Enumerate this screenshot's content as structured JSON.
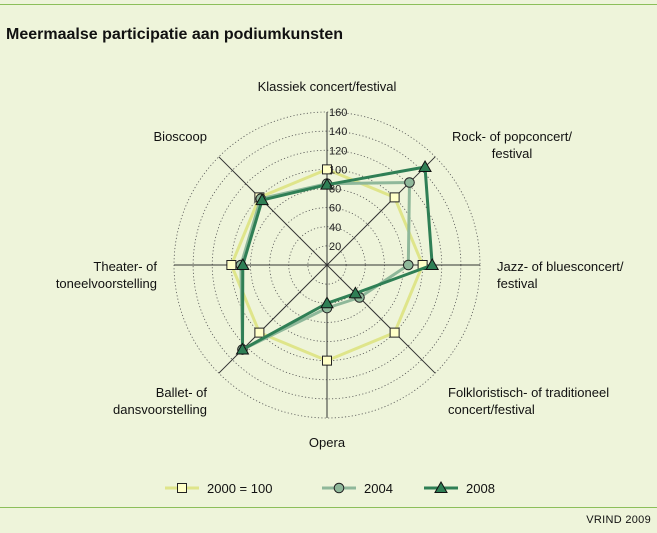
{
  "title": "Meermaalse participatie aan podiumkunsten",
  "credit": "VRIND 2009",
  "colors": {
    "background": "#eef4da",
    "rule": "#8cbf5a",
    "series_2000": "#dfe58a",
    "series_2004": "#8fb89a",
    "series_2008": "#2f7f55"
  },
  "chart_data": {
    "type": "radar",
    "categories": [
      "Klassiek concert/festival",
      "Rock- of popconcert/ festival",
      "Jazz- of bluesconcert/ festival",
      "Folkloristisch- of traditioneel concert/festival",
      "Opera",
      "Ballet- of dansvoorstelling",
      "Theater- of toneelvoorstelling",
      "Bioscoop"
    ],
    "category_lines": [
      [
        "Klassiek concert/festival"
      ],
      [
        "Rock- of popconcert/",
        "festival"
      ],
      [
        "Jazz- of bluesconcert/",
        "festival"
      ],
      [
        "Folkloristisch- of traditioneel",
        "concert/festival"
      ],
      [
        "Opera"
      ],
      [
        "Ballet- of",
        "dansvoorstelling"
      ],
      [
        "Theater- of",
        "toneelvoorstelling"
      ],
      [
        "Bioscoop"
      ]
    ],
    "radial_ticks": [
      20,
      40,
      60,
      80,
      100,
      120,
      140,
      160
    ],
    "rlim": [
      0,
      160
    ],
    "grid": true,
    "legend_position": "bottom",
    "series": [
      {
        "name": "2000 = 100",
        "marker": "square",
        "values": [
          100,
          100,
          100,
          100,
          100,
          100,
          100,
          100
        ]
      },
      {
        "name": "2004",
        "marker": "circle",
        "values": [
          85,
          122,
          85,
          48,
          45,
          125,
          90,
          98
        ]
      },
      {
        "name": "2008",
        "marker": "triangle",
        "values": [
          84,
          145,
          110,
          42,
          40,
          125,
          88,
          96
        ]
      }
    ]
  }
}
